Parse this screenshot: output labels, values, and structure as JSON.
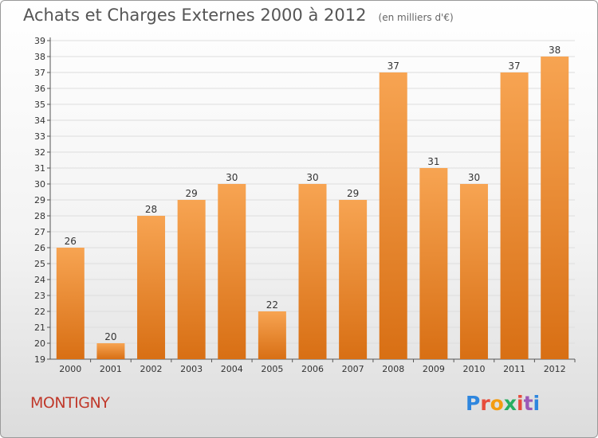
{
  "header": {
    "title": "Achats et Charges Externes 2000 à 2012",
    "unit": "(en milliers d'€)"
  },
  "commune": "MONTIGNY",
  "logo": {
    "text": "Proxiti",
    "colors": [
      "#2e86de",
      "#e74c3c",
      "#f39c12",
      "#27ae60",
      "#e74c3c",
      "#9b59b6",
      "#2e86de"
    ]
  },
  "colors": {
    "bar_top": "#f7a452",
    "bar_bottom": "#d86f14",
    "axis": "#555555",
    "grid": "#dddddd",
    "label": "#333333"
  },
  "chart_data": {
    "type": "bar",
    "categories": [
      "2000",
      "2001",
      "2002",
      "2003",
      "2004",
      "2005",
      "2006",
      "2007",
      "2008",
      "2009",
      "2010",
      "2011",
      "2012"
    ],
    "values": [
      26,
      20,
      28,
      29,
      30,
      22,
      30,
      29,
      37,
      31,
      30,
      37,
      38
    ],
    "ylim": [
      19,
      39
    ],
    "yticks": [
      "19",
      "20",
      "21",
      "22",
      "23",
      "24",
      "25",
      "26",
      "27",
      "28",
      "29",
      "30",
      "31",
      "32",
      "33",
      "34",
      "35",
      "36",
      "37",
      "38",
      "39"
    ],
    "grid": true,
    "data_labels": true
  }
}
